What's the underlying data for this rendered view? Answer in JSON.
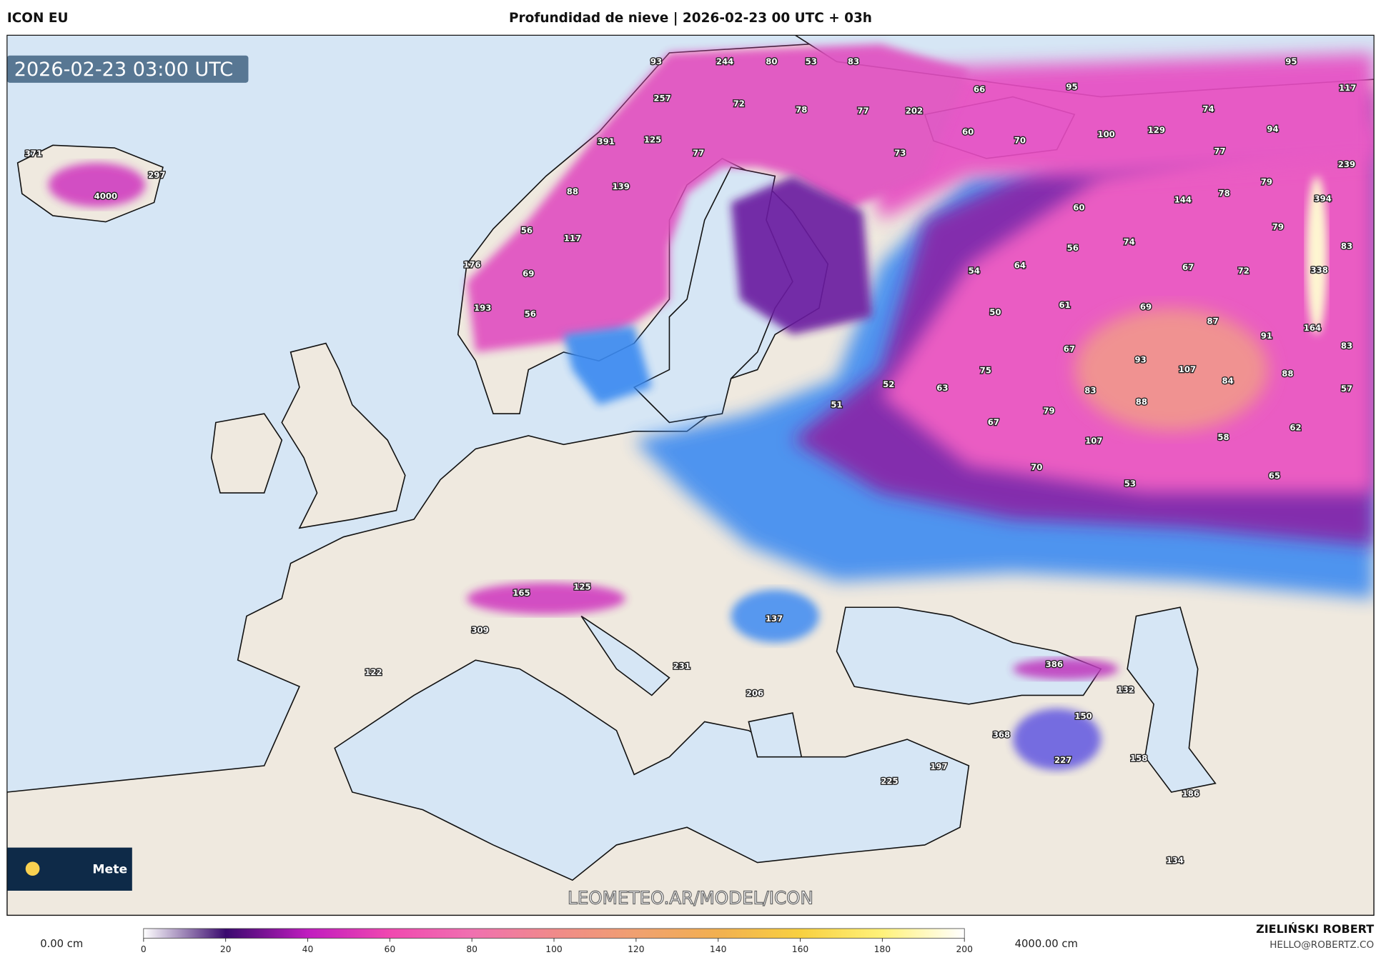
{
  "header": {
    "model": "ICON EU",
    "title": "Profundidad de nieve | 2026-02-23 00 UTC + 03h",
    "timestamp": "2026-02-23 03:00 UTC",
    "watermark": "LEOMETEO.AR/MODEL/ICON",
    "logo": "Mete"
  },
  "map": {
    "labels": [
      371,
      297,
      4000,
      93,
      244,
      80,
      53,
      83,
      257,
      72,
      78,
      77,
      202,
      66,
      95,
      95,
      117,
      391,
      125,
      77,
      73,
      60,
      70,
      100,
      129,
      74,
      94,
      77,
      239,
      88,
      139,
      144,
      78,
      79,
      394,
      60,
      56,
      117,
      74,
      79,
      83,
      176,
      69,
      56,
      54,
      64,
      67,
      72,
      338,
      193,
      56,
      50,
      61,
      69,
      87,
      91,
      164,
      67,
      83,
      75,
      93,
      107,
      84,
      88,
      57,
      52,
      63,
      83,
      88,
      51,
      79,
      67,
      62,
      107,
      58,
      70,
      65,
      53,
      125,
      165,
      309,
      137,
      122,
      386,
      231,
      132,
      206,
      150,
      368,
      158,
      227,
      197,
      225,
      186,
      134
    ]
  },
  "colorbar": {
    "min_label": "0.00 cm",
    "max_label": "4000.00 cm",
    "lim": [
      0,
      200
    ],
    "ticks": [
      0,
      20,
      40,
      60,
      80,
      100,
      120,
      140,
      160,
      180,
      200
    ],
    "colors": [
      "#ffffff",
      "#3a0a6e",
      "#c01cbf",
      "#f048b0",
      "#f070b0",
      "#f08a8a",
      "#f0a070",
      "#f2b050",
      "#f8d040",
      "#fff27a",
      "#ffffff"
    ]
  },
  "footer": {
    "author": "ZIELIŃSKI ROBERT",
    "email": "HELLO@ROBERTZ.CO"
  }
}
